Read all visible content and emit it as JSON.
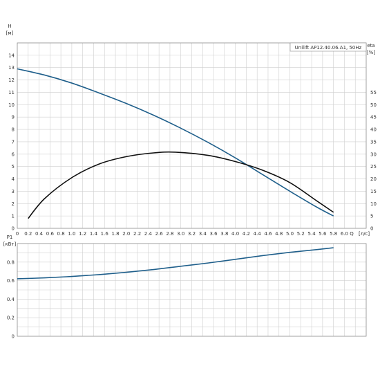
{
  "chart_data": [
    {
      "type": "line",
      "title": "Unilift AP12.40.06.A1, 50Hz",
      "left_axis": {
        "label": "H",
        "unit": "[м]",
        "range": [
          0,
          15
        ],
        "ticks": [
          "0",
          "1",
          "2",
          "3",
          "4",
          "5",
          "6",
          "7",
          "8",
          "9",
          "10",
          "11",
          "12",
          "13",
          "14"
        ]
      },
      "right_axis": {
        "label": "eta",
        "unit": "[%]",
        "range": [
          0,
          75
        ],
        "ticks": [
          "0",
          "5",
          "10",
          "15",
          "20",
          "25",
          "30",
          "35",
          "40",
          "45",
          "50",
          "55"
        ]
      },
      "x_axis": {
        "label": "Q",
        "unit": "[л/с]",
        "range": [
          0,
          6.4
        ],
        "ticks": [
          "0",
          "0.2",
          "0.4",
          "0.6",
          "0.8",
          "1.0",
          "1.2",
          "1.4",
          "1.6",
          "1.8",
          "2.0",
          "2.2",
          "2.4",
          "2.6",
          "2.8",
          "3.0",
          "3.2",
          "3.4",
          "3.6",
          "3.8",
          "4.0",
          "4.2",
          "4.4",
          "4.6",
          "4.8",
          "5.0",
          "5.2",
          "5.4",
          "5.6",
          "5.8",
          "6.0"
        ]
      },
      "grid": true,
      "legend": "top-right",
      "series": [
        {
          "name": "H",
          "axis": "left",
          "color": "#1f5f8b",
          "x": [
            0,
            0.5,
            1.0,
            1.5,
            2.0,
            2.5,
            3.0,
            3.5,
            4.0,
            4.5,
            5.0,
            5.5,
            5.8
          ],
          "y": [
            12.9,
            12.4,
            11.75,
            10.95,
            10.1,
            9.15,
            8.1,
            6.95,
            5.7,
            4.35,
            3.0,
            1.7,
            1.0
          ]
        },
        {
          "name": "eta",
          "axis": "right",
          "color": "#111111",
          "x": [
            0.2,
            0.5,
            1.0,
            1.5,
            2.0,
            2.5,
            2.9,
            3.5,
            4.0,
            4.5,
            5.0,
            5.5,
            5.8
          ],
          "y": [
            4,
            12,
            20.5,
            26,
            29,
            30.5,
            30.8,
            29.5,
            27,
            23.5,
            18.5,
            11,
            6.5
          ]
        }
      ]
    },
    {
      "type": "line",
      "left_axis": {
        "label": "P1",
        "unit": "[кВт]",
        "range": [
          0,
          1.0
        ],
        "ticks": [
          "0",
          "0.2",
          "0.4",
          "0.6",
          "0.8"
        ]
      },
      "x_axis": {
        "range": [
          0,
          6.4
        ]
      },
      "grid": true,
      "series": [
        {
          "name": "P1",
          "color": "#1f5f8b",
          "x": [
            0,
            0.5,
            1.0,
            1.5,
            2.0,
            2.5,
            3.0,
            3.5,
            4.0,
            4.5,
            5.0,
            5.5,
            5.8
          ],
          "y": [
            0.62,
            0.63,
            0.645,
            0.665,
            0.69,
            0.72,
            0.755,
            0.79,
            0.83,
            0.87,
            0.905,
            0.935,
            0.955
          ]
        }
      ]
    }
  ]
}
